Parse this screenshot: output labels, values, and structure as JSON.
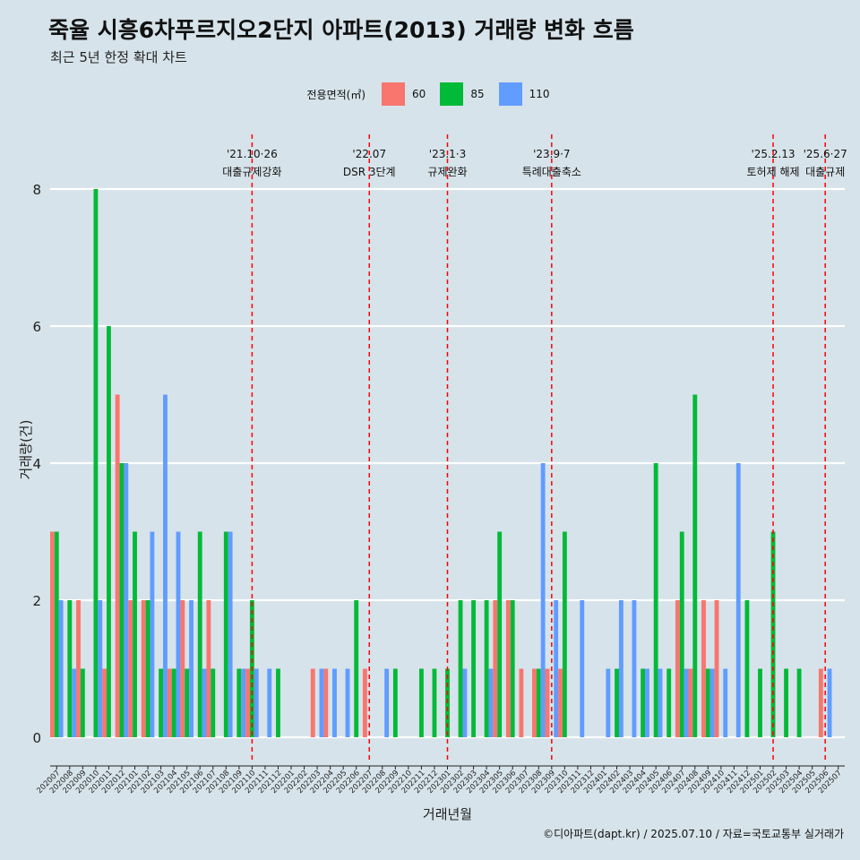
{
  "page": {
    "title": "죽율 시흥6차푸르지오2단지 아파트(2013) 거래량 변화 흐름",
    "subtitle": "최근 5년 한정 확대 차트",
    "caption": "©디아파트(dapt.kr) / 2025.07.10 / 자료=국토교통부 실거래가"
  },
  "chart_data": {
    "type": "bar",
    "title": "죽율 시흥6차푸르지오2단지 아파트(2013) 거래량 변화 흐름",
    "subtitle": "최근 5년 한정 확대 차트",
    "xlabel": "거래년월",
    "ylabel": "거래량(건)",
    "ylim": [
      0,
      8.3
    ],
    "yticks": [
      0,
      2,
      4,
      6,
      8
    ],
    "grid": "horizontal",
    "legend": {
      "title": "전용면적(㎡)",
      "position": "top"
    },
    "categories": [
      "202007",
      "202008",
      "202009",
      "202010",
      "202011",
      "202012",
      "202101",
      "202102",
      "202103",
      "202104",
      "202105",
      "202106",
      "202107",
      "202108",
      "202109",
      "202110",
      "202111",
      "202112",
      "202201",
      "202202",
      "202203",
      "202204",
      "202205",
      "202206",
      "202207",
      "202208",
      "202209",
      "202210",
      "202211",
      "202212",
      "202301",
      "202302",
      "202303",
      "202304",
      "202305",
      "202306",
      "202307",
      "202308",
      "202309",
      "202310",
      "202311",
      "202312",
      "202401",
      "202402",
      "202403",
      "202404",
      "202405",
      "202406",
      "202407",
      "202408",
      "202409",
      "202410",
      "202411",
      "202412",
      "202501",
      "202502",
      "202503",
      "202504",
      "202505",
      "202506",
      "202507"
    ],
    "series": [
      {
        "name": "60",
        "color": "#f8766d",
        "values": [
          3,
          0,
          2,
          0,
          1,
          5,
          2,
          2,
          0,
          1,
          2,
          0,
          2,
          0,
          0,
          1,
          0,
          0,
          0,
          0,
          1,
          1,
          0,
          0,
          1,
          0,
          0,
          0,
          0,
          0,
          0,
          0,
          0,
          0,
          2,
          2,
          1,
          1,
          1,
          1,
          0,
          0,
          0,
          0,
          0,
          0,
          0,
          0,
          2,
          1,
          2,
          2,
          0,
          0,
          0,
          0,
          0,
          0,
          0,
          1,
          0
        ]
      },
      {
        "name": "85",
        "color": "#00ba38",
        "values": [
          3,
          2,
          1,
          8,
          6,
          4,
          3,
          2,
          1,
          1,
          1,
          3,
          1,
          3,
          1,
          2,
          0,
          1,
          0,
          0,
          0,
          0,
          0,
          2,
          0,
          0,
          1,
          0,
          1,
          1,
          1,
          2,
          2,
          2,
          3,
          2,
          0,
          1,
          0,
          3,
          0,
          0,
          0,
          1,
          0,
          1,
          4,
          1,
          3,
          5,
          1,
          0,
          0,
          2,
          1,
          3,
          1,
          1,
          0,
          0,
          0
        ]
      },
      {
        "name": "110",
        "color": "#619cff",
        "values": [
          2,
          1,
          0,
          2,
          0,
          4,
          0,
          3,
          5,
          3,
          2,
          1,
          0,
          3,
          1,
          1,
          1,
          0,
          0,
          0,
          1,
          1,
          1,
          0,
          0,
          1,
          0,
          0,
          0,
          0,
          0,
          1,
          0,
          1,
          0,
          0,
          0,
          4,
          2,
          0,
          2,
          0,
          1,
          2,
          2,
          1,
          1,
          0,
          1,
          0,
          1,
          1,
          4,
          0,
          0,
          0,
          0,
          0,
          0,
          1,
          0
        ]
      }
    ],
    "events": [
      {
        "at": "202110",
        "date": "'21.10·26",
        "label": "대출규제강화"
      },
      {
        "at": "202207",
        "date": "'22.07",
        "label": "DSR 3단계"
      },
      {
        "at": "202301",
        "date": "'23.1·3",
        "label": "규제완화"
      },
      {
        "at": "202309",
        "date": "'23.9·7",
        "label": "특례대출축소"
      },
      {
        "at": "202502",
        "date": "'25.2.13",
        "label": "토허제 해제"
      },
      {
        "at": "202506",
        "date": "'25.6·27",
        "label": "대출규제"
      }
    ]
  }
}
